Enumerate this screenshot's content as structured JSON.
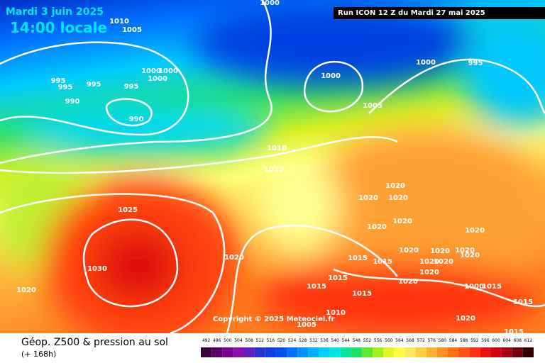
{
  "header": {
    "date": "Mardi 3 juin 2025",
    "time": "14:00 locale",
    "run": "Run ICON 12 Z du Mardi 27 mai 2025"
  },
  "copyright": "Copyright © 2025 Meteociel.fr",
  "footer": {
    "title": "Géop. Z500 & pression au sol",
    "lead": "(+ 168h)"
  },
  "legend": {
    "labels": [
      492,
      496,
      500,
      504,
      508,
      512,
      516,
      520,
      524,
      528,
      532,
      536,
      540,
      544,
      548,
      552,
      556,
      560,
      564,
      568,
      572,
      576,
      580,
      584,
      588,
      592,
      596,
      600,
      604,
      608,
      612
    ],
    "colors": [
      "#3a003a",
      "#5a0060",
      "#7a0090",
      "#8a10b0",
      "#6020c0",
      "#3030d0",
      "#1040e0",
      "#0050f0",
      "#0070ff",
      "#0090ff",
      "#00b0ff",
      "#00d0ff",
      "#00e8e0",
      "#00e8a0",
      "#20e060",
      "#60e830",
      "#a0f020",
      "#e0f820",
      "#ffff40",
      "#ffe860",
      "#ffd040",
      "#ffb030",
      "#ff9020",
      "#ff7010",
      "#ff5010",
      "#ff3010",
      "#f01010",
      "#d00010",
      "#a00010",
      "#700010",
      "#300000"
    ]
  },
  "isobar_labels": [
    "1010",
    "1005",
    "1000",
    "995",
    "995",
    "995",
    "990",
    "995",
    "1000",
    "1000",
    "1000",
    "990",
    "1000",
    "1000",
    "995",
    "1005",
    "1010",
    "1015",
    "1025",
    "1030",
    "1020",
    "1020",
    "1020",
    "1020",
    "1020",
    "1020",
    "1020",
    "1015",
    "1015",
    "1015",
    "1015",
    "1015",
    "1020",
    "1020",
    "1020",
    "1020",
    "1020",
    "1020",
    "1020",
    "1020",
    "1020",
    "1020",
    "1010",
    "1005",
    "1015",
    "1015",
    "1015",
    "1000"
  ]
}
